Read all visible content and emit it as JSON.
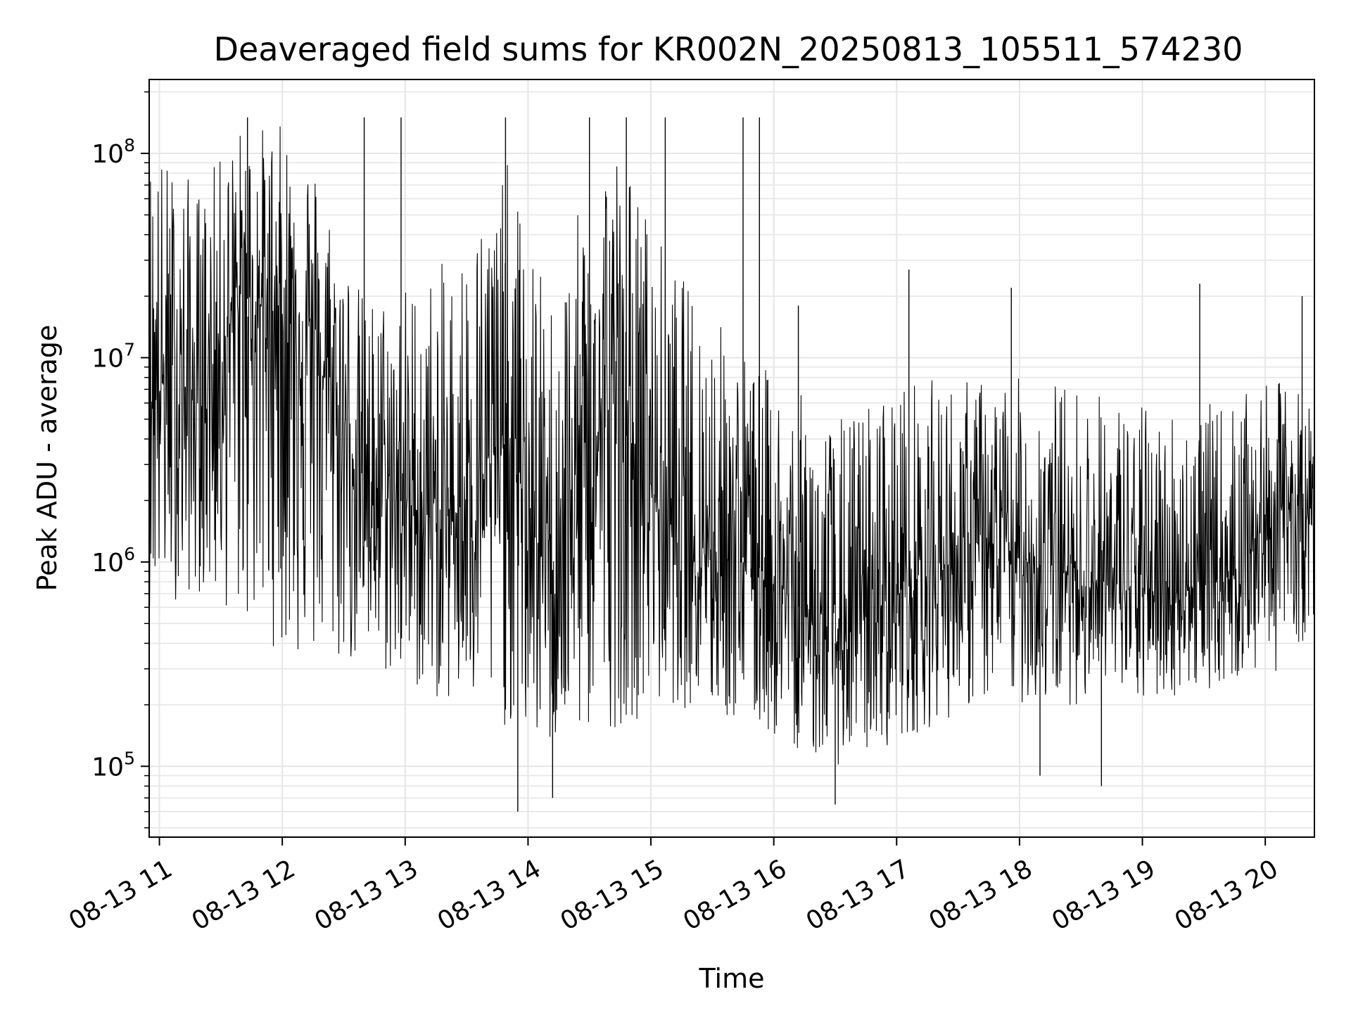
{
  "chart_data": {
    "type": "line",
    "title": "Deaveraged field sums for KR002N_20250813_105511_574230",
    "xlabel": "Time",
    "ylabel": "Peak ADU - average",
    "yscale": "log",
    "ylim": [
      45000,
      230000000
    ],
    "xlim": [
      "2025-08-13 10:55",
      "2025-08-13 20:24"
    ],
    "grid": "on",
    "legend": "none",
    "line_color": "#000000",
    "grid_color": "#e6e6e6",
    "x_ticks": [
      {
        "value": "2025-08-13 11:00",
        "label": "08-13 11"
      },
      {
        "value": "2025-08-13 12:00",
        "label": "08-13 12"
      },
      {
        "value": "2025-08-13 13:00",
        "label": "08-13 13"
      },
      {
        "value": "2025-08-13 14:00",
        "label": "08-13 14"
      },
      {
        "value": "2025-08-13 15:00",
        "label": "08-13 15"
      },
      {
        "value": "2025-08-13 16:00",
        "label": "08-13 16"
      },
      {
        "value": "2025-08-13 17:00",
        "label": "08-13 17"
      },
      {
        "value": "2025-08-13 18:00",
        "label": "08-13 18"
      },
      {
        "value": "2025-08-13 19:00",
        "label": "08-13 19"
      },
      {
        "value": "2025-08-13 20:00",
        "label": "08-13 20"
      }
    ],
    "y_ticks": [
      {
        "value": 100000,
        "base": "10",
        "exp": "5"
      },
      {
        "value": 1000000,
        "base": "10",
        "exp": "6"
      },
      {
        "value": 10000000,
        "base": "10",
        "exp": "7"
      },
      {
        "value": 100000000,
        "base": "10",
        "exp": "8"
      }
    ],
    "envelope": [
      {
        "t": "2025-08-13 10:55",
        "low": 600000,
        "mid": 8000000,
        "high": 120000000
      },
      {
        "t": "2025-08-13 11:20",
        "low": 700000,
        "mid": 6000000,
        "high": 70000000
      },
      {
        "t": "2025-08-13 11:40",
        "low": 500000,
        "mid": 20000000,
        "high": 140000000
      },
      {
        "t": "2025-08-13 12:10",
        "low": 300000,
        "mid": 15000000,
        "high": 140000000
      },
      {
        "t": "2025-08-13 12:40",
        "low": 300000,
        "mid": 2500000,
        "high": 20000000
      },
      {
        "t": "2025-08-13 13:20",
        "low": 200000,
        "mid": 1500000,
        "high": 30000000
      },
      {
        "t": "2025-08-13 13:50",
        "low": 150000,
        "mid": 4000000,
        "high": 90000000
      },
      {
        "t": "2025-08-13 14:10",
        "low": 120000,
        "mid": 800000,
        "high": 20000000
      },
      {
        "t": "2025-08-13 14:40",
        "low": 150000,
        "mid": 6000000,
        "high": 140000000
      },
      {
        "t": "2025-08-13 15:10",
        "low": 200000,
        "mid": 1500000,
        "high": 30000000
      },
      {
        "t": "2025-08-13 15:50",
        "low": 150000,
        "mid": 1000000,
        "high": 10000000
      },
      {
        "t": "2025-08-13 16:30",
        "low": 100000,
        "mid": 400000,
        "high": 5000000
      },
      {
        "t": "2025-08-13 17:00",
        "low": 130000,
        "mid": 700000,
        "high": 8000000
      },
      {
        "t": "2025-08-13 17:40",
        "low": 200000,
        "mid": 1200000,
        "high": 8000000
      },
      {
        "t": "2025-08-13 18:20",
        "low": 200000,
        "mid": 900000,
        "high": 8000000
      },
      {
        "t": "2025-08-13 19:00",
        "low": 200000,
        "mid": 700000,
        "high": 6000000
      },
      {
        "t": "2025-08-13 19:40",
        "low": 250000,
        "mid": 800000,
        "high": 6000000
      },
      {
        "t": "2025-08-13 20:10",
        "low": 300000,
        "mid": 2000000,
        "high": 8000000
      },
      {
        "t": "2025-08-13 20:24",
        "low": 500000,
        "mid": 1500000,
        "high": 6000000
      }
    ],
    "spikes": [
      {
        "t": "2025-08-13 11:43",
        "value": 150000000
      },
      {
        "t": "2025-08-13 12:40",
        "value": 150000000
      },
      {
        "t": "2025-08-13 12:58",
        "value": 150000000
      },
      {
        "t": "2025-08-13 13:49",
        "value": 150000000
      },
      {
        "t": "2025-08-13 14:30",
        "value": 150000000
      },
      {
        "t": "2025-08-13 14:48",
        "value": 150000000
      },
      {
        "t": "2025-08-13 15:07",
        "value": 150000000
      },
      {
        "t": "2025-08-13 15:45",
        "value": 150000000
      },
      {
        "t": "2025-08-13 15:53",
        "value": 150000000
      },
      {
        "t": "2025-08-13 16:12",
        "value": 18000000
      },
      {
        "t": "2025-08-13 17:06",
        "value": 27000000
      },
      {
        "t": "2025-08-13 17:56",
        "value": 22000000
      },
      {
        "t": "2025-08-13 19:28",
        "value": 23000000
      },
      {
        "t": "2025-08-13 20:18",
        "value": 20000000
      },
      {
        "t": "2025-08-13 13:55",
        "value": 60000
      },
      {
        "t": "2025-08-13 14:12",
        "value": 70000
      },
      {
        "t": "2025-08-13 16:30",
        "value": 65000
      },
      {
        "t": "2025-08-13 18:10",
        "value": 90000
      },
      {
        "t": "2025-08-13 18:40",
        "value": 80000
      }
    ]
  }
}
